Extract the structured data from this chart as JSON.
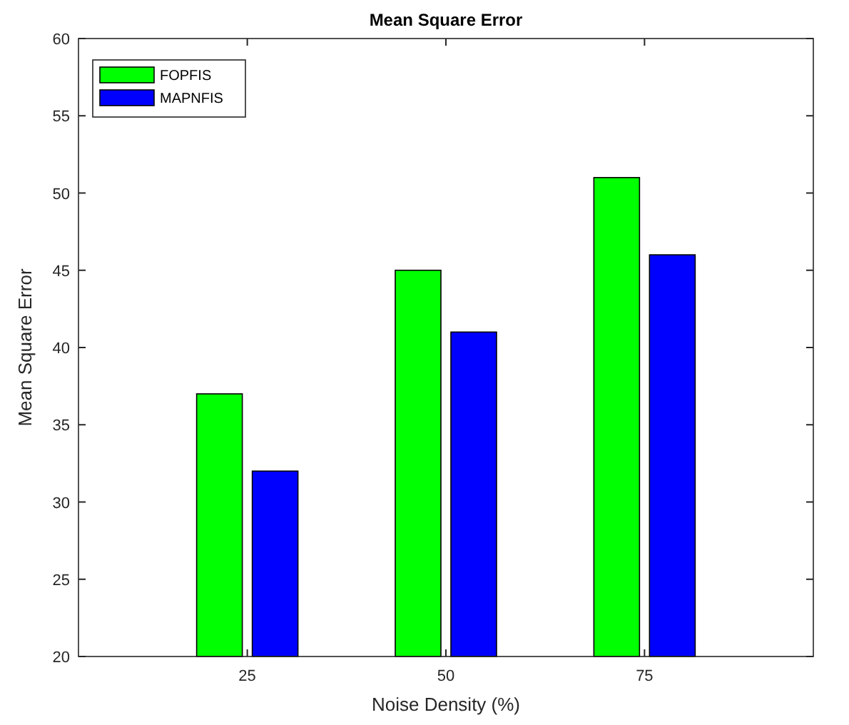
{
  "chart_data": {
    "type": "bar",
    "title": "Mean Square Error",
    "xlabel": "Noise Density (%)",
    "ylabel": "Mean Square Error",
    "categories": [
      "25",
      "50",
      "75"
    ],
    "series": [
      {
        "name": "FOPFIS",
        "color": "#00ff00",
        "values": [
          37,
          45,
          51
        ]
      },
      {
        "name": "MAPNFIS",
        "color": "#0000ff",
        "values": [
          32,
          41,
          46
        ]
      }
    ],
    "ylim": [
      20,
      60
    ],
    "yticks": [
      20,
      25,
      30,
      35,
      40,
      45,
      50,
      55,
      60
    ],
    "grid": false,
    "legend": "top left"
  }
}
